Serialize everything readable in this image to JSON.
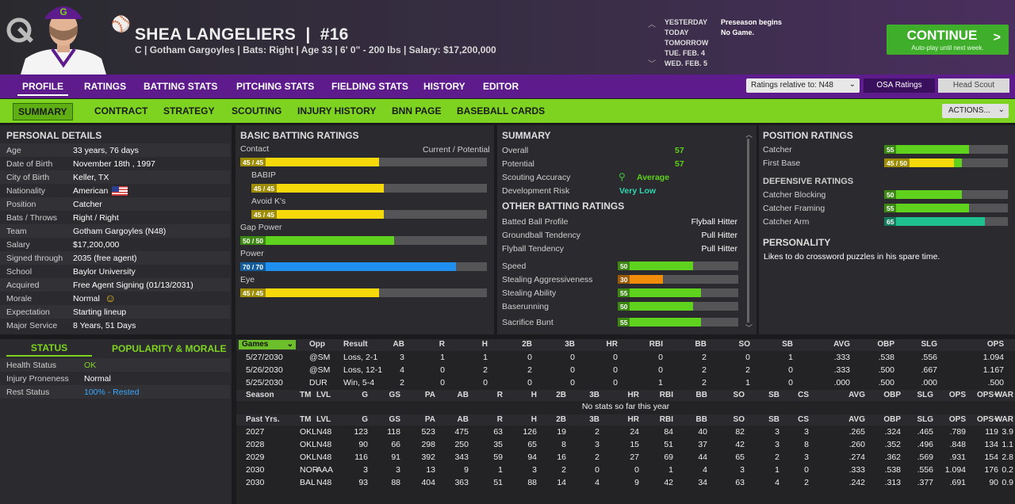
{
  "header": {
    "player_name": "SHEA LANGELIERS",
    "separator": "|",
    "number": "#16",
    "info": "C | Gotham Gargoyles  |  Bats: Right  |  Age 33  |  6' 0\"  - 200 lbs  |  Salary: $17,200,000",
    "calendar": [
      "YESTERDAY",
      "TODAY",
      "TOMORROW",
      "TUE. FEB. 4",
      "WED. FEB. 5"
    ],
    "events": [
      "Preseason begins",
      "No Game."
    ],
    "continue_label": "CONTINUE",
    "continue_sub": "Auto-play until next week."
  },
  "nav1": {
    "tabs": [
      "PROFILE",
      "RATINGS",
      "BATTING STATS",
      "PITCHING STATS",
      "FIELDING STATS",
      "HISTORY",
      "EDITOR"
    ],
    "ratings_relative": "Ratings relative to: N48",
    "osa_label": "OSA Ratings",
    "scout_label": "Head Scout"
  },
  "nav2": {
    "tabs": [
      "SUMMARY",
      "CONTRACT",
      "STRATEGY",
      "SCOUTING",
      "INJURY HISTORY",
      "BNN PAGE",
      "BASEBALL CARDS"
    ],
    "actions_label": "ACTIONS..."
  },
  "personal": {
    "title": "PERSONAL DETAILS",
    "rows": [
      {
        "label": "Age",
        "value": "33 years, 76 days"
      },
      {
        "label": "Date of Birth",
        "value": "November 18th , 1997"
      },
      {
        "label": "City of Birth",
        "value": "Keller, TX"
      },
      {
        "label": "Nationality",
        "value": "American"
      },
      {
        "label": "Position",
        "value": "Catcher"
      },
      {
        "label": "Bats / Throws",
        "value": "Right / Right"
      },
      {
        "label": "Team",
        "value": "Gotham Gargoyles (N48)"
      },
      {
        "label": "Salary",
        "value": "$17,200,000"
      },
      {
        "label": "Signed through",
        "value": "2035 (free agent)"
      },
      {
        "label": "School",
        "value": "Baylor University"
      },
      {
        "label": "Acquired",
        "value": "Free Agent Signing (01/13/2031)"
      },
      {
        "label": "Morale",
        "value": "Normal"
      },
      {
        "label": "Expectation",
        "value": "Starting lineup"
      },
      {
        "label": "Major Service",
        "value": "8 Years, 51 Days"
      }
    ]
  },
  "status": {
    "tab_status": "STATUS",
    "tab_popularity": "POPULARITY & MORALE",
    "rows": [
      {
        "label": "Health Status",
        "value": "OK",
        "color": "#7ed321"
      },
      {
        "label": "Injury Proneness",
        "value": "Normal",
        "color": "#ffffff"
      },
      {
        "label": "Rest Status",
        "value": "100% - Rested",
        "color": "#39a8ff"
      }
    ]
  },
  "batting": {
    "title": "BASIC BATTING RATINGS",
    "cp_label": "Current / Potential",
    "items": [
      {
        "label": "Contact",
        "badge": "45 / 45",
        "value": 45,
        "color": "#f5d90a"
      },
      {
        "label": "BABIP",
        "badge": "45 / 45",
        "value": 45,
        "color": "#f5d90a"
      },
      {
        "label": "Avoid K's",
        "badge": "45 / 45",
        "value": 45,
        "color": "#f5d90a"
      },
      {
        "label": "Gap Power",
        "badge": "50 / 50",
        "value": 50,
        "color": "#5ed21c"
      },
      {
        "label": "Power",
        "badge": "70 / 70",
        "value": 70,
        "color": "#1f8ff0"
      },
      {
        "label": "Eye",
        "badge": "45 / 45",
        "value": 45,
        "color": "#f5d90a"
      }
    ]
  },
  "summary": {
    "title": "SUMMARY",
    "rows": [
      {
        "label": "Overall",
        "value": "57"
      },
      {
        "label": "Potential",
        "value": "57"
      },
      {
        "label": "Scouting Accuracy",
        "value": "Average"
      },
      {
        "label": "Development Risk",
        "value": "Very Low"
      }
    ],
    "other_title": "OTHER BATTING RATINGS",
    "other": [
      {
        "label": "Batted Ball Profile",
        "value": "Flyball Hitter"
      },
      {
        "label": "Groundball Tendency",
        "value": "Pull Hitter"
      },
      {
        "label": "Flyball Tendency",
        "value": "Pull Hitter"
      }
    ],
    "speed": [
      {
        "label": "Speed",
        "value": 50,
        "color": "#5ed21c"
      },
      {
        "label": "Stealing Aggressiveness",
        "value": 30,
        "color": "#f08c0a"
      },
      {
        "label": "Stealing Ability",
        "value": 55,
        "color": "#5ed21c"
      },
      {
        "label": "Baserunning",
        "value": 50,
        "color": "#5ed21c"
      },
      {
        "label": "Sacrifice Bunt",
        "value": 55,
        "color": "#5ed21c"
      }
    ]
  },
  "position": {
    "title": "POSITION RATINGS",
    "items": [
      {
        "label": "Catcher",
        "badge": "55",
        "value": 55,
        "pot": 55,
        "color": "#5ed21c"
      },
      {
        "label": "First Base",
        "badge": "45 / 50",
        "value": 45,
        "pot": 50,
        "color": "#f5d90a"
      }
    ],
    "def_title": "DEFENSIVE RATINGS",
    "def": [
      {
        "label": "Catcher Blocking",
        "badge": "50",
        "value": 50,
        "color": "#5ed21c"
      },
      {
        "label": "Catcher Framing",
        "badge": "55",
        "value": 55,
        "color": "#5ed21c"
      },
      {
        "label": "Catcher Arm",
        "badge": "65",
        "value": 65,
        "color": "#1fbf8f"
      }
    ],
    "personality_title": "PERSONALITY",
    "personality": "Likes to do crossword puzzles in his spare time."
  },
  "games": {
    "dropdown": "Games",
    "headers": [
      "Opp",
      "Result",
      "AB",
      "R",
      "H",
      "2B",
      "3B",
      "HR",
      "RBI",
      "BB",
      "SO",
      "SB",
      "AVG",
      "OBP",
      "SLG",
      "OPS"
    ],
    "rows": [
      [
        "5/27/2030",
        "@SM",
        "Loss, 2-1",
        "3",
        "1",
        "1",
        "0",
        "0",
        "0",
        "0",
        "2",
        "0",
        "1",
        ".333",
        ".538",
        ".556",
        "1.094"
      ],
      [
        "5/26/2030",
        "@SM",
        "Loss, 12-1",
        "4",
        "0",
        "2",
        "2",
        "0",
        "0",
        "0",
        "2",
        "2",
        "0",
        ".333",
        ".500",
        ".667",
        "1.167"
      ],
      [
        "5/25/2030",
        "DUR",
        "Win, 5-4",
        "2",
        "0",
        "0",
        "0",
        "0",
        "0",
        "1",
        "2",
        "1",
        "0",
        ".000",
        ".500",
        ".000",
        ".500"
      ]
    ]
  },
  "season": {
    "headers": [
      "Season",
      "TM",
      "LVL",
      "G",
      "GS",
      "PA",
      "AB",
      "R",
      "H",
      "2B",
      "3B",
      "HR",
      "RBI",
      "BB",
      "SO",
      "SB",
      "CS",
      "AVG",
      "OBP",
      "SLG",
      "OPS",
      "OPS+",
      "WAR"
    ],
    "empty": "No stats so far this year"
  },
  "past": {
    "headers": [
      "Past Yrs.",
      "TM",
      "LVL",
      "G",
      "GS",
      "PA",
      "AB",
      "R",
      "H",
      "2B",
      "3B",
      "HR",
      "RBI",
      "BB",
      "SO",
      "SB",
      "CS",
      "AVG",
      "OBP",
      "SLG",
      "OPS",
      "OPS+",
      "WAR"
    ],
    "rows": [
      [
        "2027",
        "OKL",
        "N48",
        "123",
        "118",
        "523",
        "475",
        "63",
        "126",
        "19",
        "2",
        "24",
        "84",
        "40",
        "82",
        "3",
        "3",
        ".265",
        ".324",
        ".465",
        ".789",
        "119",
        "3.9"
      ],
      [
        "2028",
        "OKL",
        "N48",
        "90",
        "66",
        "298",
        "250",
        "35",
        "65",
        "8",
        "3",
        "15",
        "51",
        "37",
        "42",
        "3",
        "8",
        ".260",
        ".352",
        ".496",
        ".848",
        "134",
        "1.1"
      ],
      [
        "2029",
        "OKL",
        "N48",
        "116",
        "91",
        "392",
        "343",
        "59",
        "94",
        "16",
        "2",
        "27",
        "69",
        "44",
        "65",
        "2",
        "3",
        ".274",
        ".362",
        ".569",
        ".931",
        "154",
        "2.8"
      ],
      [
        "2030",
        "NOR",
        "AAA",
        "3",
        "3",
        "13",
        "9",
        "1",
        "3",
        "2",
        "0",
        "0",
        "1",
        "4",
        "3",
        "1",
        "0",
        ".333",
        ".538",
        ".556",
        "1.094",
        "176",
        "0.2"
      ],
      [
        "2030",
        "BAL",
        "N48",
        "93",
        "88",
        "404",
        "363",
        "51",
        "88",
        "14",
        "4",
        "9",
        "42",
        "34",
        "63",
        "4",
        "2",
        ".242",
        ".313",
        ".377",
        ".691",
        "90",
        "0.9"
      ]
    ]
  }
}
